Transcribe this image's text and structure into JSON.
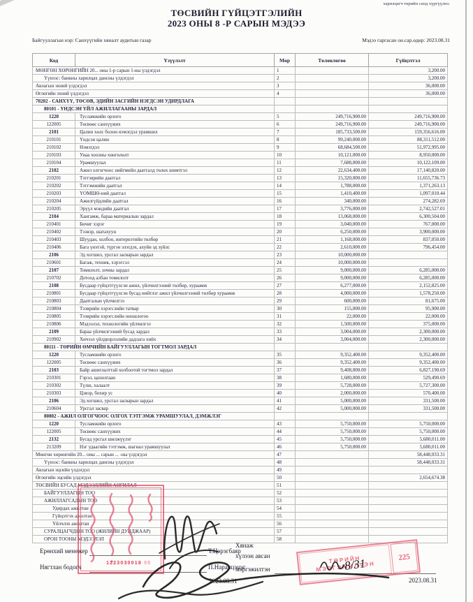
{
  "page": {
    "corner_note": "харилцагч төрийн санд хүргүүлнэ.",
    "title_line1": "ТӨСВИЙН ГҮЙЦЭТГЭЛИЙН",
    "title_line2": "2023 ОНЫ 8 -Р САРЫН МЭДЭЭ",
    "org_label": "Байгууллагын нэр: Санхүүгийн хяналт аудитын газар",
    "date_label": "Мэдээ гаргасан он.сар.өдөр: 2023.08.31"
  },
  "table": {
    "headers": [
      "Код",
      "Үзүүлэлт",
      "Мөр",
      "Төлөвлөгөө",
      "Гүйцэтгэл"
    ],
    "rows": [
      {
        "c": "",
        "t": "МӨНГӨН ХӨРӨНГИЙН 20... оны 1-р сарын 1-ны үлдэгдэл",
        "n": "1",
        "p": "",
        "a": "3,200.00",
        "s": "",
        "i": 0
      },
      {
        "c": "",
        "t": "Үүнээс: банкны харилцах дансны үлдэгдэл",
        "n": "2",
        "p": "",
        "a": "3,200.00",
        "s": "",
        "i": 1
      },
      {
        "c": "",
        "t": "Авлагын эхний үлдэгдэл",
        "n": "3",
        "p": "",
        "a": "36,000.00",
        "s": "",
        "i": 0
      },
      {
        "c": "",
        "t": "Өглөгийн эхний үлдэгдэл",
        "n": "4",
        "p": "",
        "a": "36,000.00",
        "s": "",
        "i": 0
      },
      {
        "c": "",
        "t": "70202 - САНХҮҮ, ТӨСӨВ, ЭДИЙН ЗАСГИЙН НЭГДСЭН УДИРДЛАГА",
        "n": "",
        "p": "",
        "a": "",
        "s": "sec",
        "i": 0
      },
      {
        "c": "",
        "t": "80101 - ҮНДСЭН ҮЙЛ АЖИЛЛАГААНЫ ЗАРДАЛ",
        "n": "",
        "p": "",
        "a": "",
        "s": "sec",
        "i": 1
      },
      {
        "c": "1220",
        "t": "Тусламжийн орлого",
        "n": "5",
        "p": "249,716,900.00",
        "a": "249,716,900.00",
        "s": "b",
        "i": 0
      },
      {
        "c": "122005",
        "t": "Төсвөөс санхүүжих",
        "n": "6",
        "p": "249,716,900.00",
        "a": "249,716,900.00",
        "s": "",
        "i": 0
      },
      {
        "c": "2101",
        "t": "Цалин хөлс болон нэмэгдэл урамшил",
        "n": "7",
        "p": "185,733,500.00",
        "a": "159,356,616.00",
        "s": "b",
        "i": 0
      },
      {
        "c": "210101",
        "t": "Үндсэн цалин",
        "n": "8",
        "p": "99,240,000.00",
        "a": "88,311,512.00",
        "s": "",
        "i": 0
      },
      {
        "c": "210102",
        "t": "Нэмэгдэл",
        "n": "9",
        "p": "68,684,500.00",
        "a": "51,972,995.00",
        "s": "",
        "i": 0
      },
      {
        "c": "210103",
        "t": "Унаа хоолны хөнгөлөлт",
        "n": "10",
        "p": "10,121,000.00",
        "a": "8,950,000.00",
        "s": "",
        "i": 0
      },
      {
        "c": "210104",
        "t": "Урамшуулал",
        "n": "11",
        "p": "7,688,000.00",
        "a": "10,122,109.00",
        "s": "",
        "i": 0
      },
      {
        "c": "2102",
        "t": "Ажил олгогчоос нийгмийн даатгалд төлөх шимтгэл",
        "n": "12",
        "p": "22,634,400.00",
        "a": "17,140,820.00",
        "s": "b",
        "i": 0
      },
      {
        "c": "210201",
        "t": "Тэтгэврийн даатгал",
        "n": "13",
        "p": "15,320,000.00",
        "a": "11,655,736.73",
        "s": "",
        "i": 0
      },
      {
        "c": "210202",
        "t": "Тэтгэмжийн даатгал",
        "n": "14",
        "p": "1,788,000.00",
        "a": "1,371,263.13",
        "s": "",
        "i": 0
      },
      {
        "c": "210203",
        "t": "ҮОМШӨ-ний даатгал",
        "n": "15",
        "p": "1,410,400.00",
        "a": "1,097,010.44",
        "s": "",
        "i": 0
      },
      {
        "c": "210204",
        "t": "Ажилгүйдлийн даатгал",
        "n": "16",
        "p": "340,000.00",
        "a": "274,282.69",
        "s": "",
        "i": 0
      },
      {
        "c": "210205",
        "t": "Эрүүл мэндийн даатгал",
        "n": "17",
        "p": "3,776,000.00",
        "a": "2,742,527.01",
        "s": "",
        "i": 0
      },
      {
        "c": "2104",
        "t": "Хангамж, бараа материалын зардал",
        "n": "18",
        "p": "13,068,000.00",
        "a": "6,300,504.00",
        "s": "b",
        "i": 0
      },
      {
        "c": "210401",
        "t": "Бичиг хэрэг",
        "n": "19",
        "p": "3,040,000.00",
        "a": "767,000.00",
        "s": "",
        "i": 0
      },
      {
        "c": "210402",
        "t": "Тээвэр, шатахуун",
        "n": "20",
        "p": "6,250,000.00",
        "a": "3,900,000.00",
        "s": "",
        "i": 0
      },
      {
        "c": "210403",
        "t": "Шуудан, холбоо, интернэтийн төлбөр",
        "n": "21",
        "p": "1,168,000.00",
        "a": "837,050.00",
        "s": "",
        "i": 0
      },
      {
        "c": "210406",
        "t": "Бага үнэтэй, түргэн элэгдэх, ахуйн эд зүйлс",
        "n": "22",
        "p": "2,610,000.00",
        "a": "796,454.00",
        "s": "",
        "i": 0
      },
      {
        "c": "2106",
        "t": "Эд хогшил, урсгал засварын зардал",
        "n": "23",
        "p": "10,000,000.00",
        "a": "",
        "s": "b",
        "i": 0
      },
      {
        "c": "210601",
        "t": "Багаж, техник, хэрэгсэл",
        "n": "24",
        "p": "10,000,000.00",
        "a": "",
        "s": "",
        "i": 0
      },
      {
        "c": "2107",
        "t": "Томилолт, зочны зардал",
        "n": "25",
        "p": "9,000,000.00",
        "a": "6,285,000.00",
        "s": "b",
        "i": 0
      },
      {
        "c": "210702",
        "t": "Дотоод албан томилолт",
        "n": "26",
        "p": "9,000,000.00",
        "a": "6,285,000.00",
        "s": "",
        "i": 0
      },
      {
        "c": "2108",
        "t": "Бусдаар гүйцэтгүүлсэн ажил, үйлчилгээний төлбөр, хураамж",
        "n": "27",
        "p": "6,277,000.00",
        "a": "2,152,825.00",
        "s": "b",
        "i": 0
      },
      {
        "c": "210801",
        "t": "Бусдаар гүйцэтгүүлсэн бусад нийтлэг ажил үйлчилгээний төлбөр хураамж",
        "n": "28",
        "p": "4,000,000.00",
        "a": "1,578,250.00",
        "s": "",
        "i": 0
      },
      {
        "c": "210803",
        "t": "Даатгалын үйлчилгээ",
        "n": "29",
        "p": "600,000.00",
        "a": "81,675.00",
        "s": "",
        "i": 0
      },
      {
        "c": "210804",
        "t": "Тээврийн хэрэгслийн татвар",
        "n": "30",
        "p": "155,000.00",
        "a": "95,900.00",
        "s": "",
        "i": 0
      },
      {
        "c": "210805",
        "t": "Тээврийн хэрэгслийн оношлогоо",
        "n": "31",
        "p": "22,000.00",
        "a": "22,000.00",
        "s": "",
        "i": 0
      },
      {
        "c": "210806",
        "t": "Мэдээлэл, технологийн үйлчилгээ",
        "n": "32",
        "p": "1,500,000.00",
        "a": "375,000.00",
        "s": "",
        "i": 0
      },
      {
        "c": "2109",
        "t": "Бараа үйлчилгээний бусад зардал",
        "n": "33",
        "p": "3,004,000.00",
        "a": "2,300,000.00",
        "s": "b",
        "i": 0
      },
      {
        "c": "210902",
        "t": "Хичээл үйлдвэрлэлийн дадлага хийх",
        "n": "34",
        "p": "3,004,000.00",
        "a": "2,300,000.00",
        "s": "",
        "i": 0
      },
      {
        "c": "",
        "t": "80111 - ТӨРИЙН ӨМЧИЙН БАЙГУУЛЛАГЫН ТОГТМОЛ ЗАРДАЛ",
        "n": "",
        "p": "",
        "a": "",
        "s": "sec",
        "i": 1
      },
      {
        "c": "1220",
        "t": "Тусламжийн орлого",
        "n": "35",
        "p": "9,352,400.00",
        "a": "9,352,400.00",
        "s": "b",
        "i": 0
      },
      {
        "c": "122005",
        "t": "Төсвөөс санхүүжих",
        "n": "36",
        "p": "9,352,400.00",
        "a": "9,352,400.00",
        "s": "",
        "i": 0
      },
      {
        "c": "2103",
        "t": "Байр ашиглалттай холбоотой тогтмол зардал",
        "n": "37",
        "p": "9,408,000.00",
        "a": "6,827,190.69",
        "s": "b",
        "i": 0
      },
      {
        "c": "210301",
        "t": "Гэрэл, цахилгаан",
        "n": "38",
        "p": "1,680,000.00",
        "a": "529,490.69",
        "s": "",
        "i": 0
      },
      {
        "c": "210302",
        "t": "Түлш, халаалт",
        "n": "39",
        "p": "5,728,000.00",
        "a": "5,727,300.00",
        "s": "",
        "i": 0
      },
      {
        "c": "210303",
        "t": "Цэвэр, бохир ус",
        "n": "40",
        "p": "2,000,000.00",
        "a": "570,400.00",
        "s": "",
        "i": 0
      },
      {
        "c": "2106",
        "t": "Эд хогшил, урсгал засварын зардал",
        "n": "41",
        "p": "5,000,000.00",
        "a": "331,500.00",
        "s": "b",
        "i": 0
      },
      {
        "c": "210604",
        "t": "Урсгал засвар",
        "n": "42",
        "p": "5,000,000.00",
        "a": "331,500.00",
        "s": "",
        "i": 0
      },
      {
        "c": "",
        "t": "80802 - АЖИЛ ОЛГОГЧООС ОЛГОХ ТЭТГЭМЖ УРАМШУУЛАЛ, ДЭМЖЛЭГ",
        "n": "",
        "p": "",
        "a": "",
        "s": "sec",
        "i": 1
      },
      {
        "c": "1220",
        "t": "Тусламжийн орлого",
        "n": "43",
        "p": "5,750,000.00",
        "a": "5,750,000.00",
        "s": "b",
        "i": 0
      },
      {
        "c": "122005",
        "t": "Төсвөөс санхүүжих",
        "n": "44",
        "p": "5,750,000.00",
        "a": "5,750,000.00",
        "s": "",
        "i": 0
      },
      {
        "c": "2132",
        "t": "Бусад урсгал шилжүүлэг",
        "n": "45",
        "p": "5,750,000.00",
        "a": "5,680,011.00",
        "s": "b",
        "i": 0
      },
      {
        "c": "213209",
        "t": "Нэг удаагийн тэтгэмж, шагнал урамшуулал",
        "n": "46",
        "p": "5,750,000.00",
        "a": "5,680,011.00",
        "s": "",
        "i": 0
      },
      {
        "c": "",
        "t": "Мөнгөн хөрөнгийн 20... оны ... сарын ... -ны үлдэгдэл",
        "n": "47",
        "p": "",
        "a": "58,448,033.31",
        "s": "",
        "i": 0
      },
      {
        "c": "",
        "t": "Үүнээс: банкны харилцах дансны үлдэгдэл",
        "n": "48",
        "p": "",
        "a": "58,448,033.31",
        "s": "",
        "i": 1
      },
      {
        "c": "",
        "t": "Авлагын эцсийн үлдэгдэл",
        "n": "49",
        "p": "",
        "a": "",
        "s": "",
        "i": 0
      },
      {
        "c": "",
        "t": "Өглөгийн эцсийн үлдэгдэл",
        "n": "50",
        "p": "",
        "a": "2,654,674.38",
        "s": "",
        "i": 0
      },
      {
        "c": "",
        "t": "ТӨСВИЙН БУСАД МЭДЭЭЛЛИЙН АНГИЛАЛ",
        "n": "51",
        "p": "",
        "a": "",
        "s": "",
        "i": 0
      },
      {
        "c": "",
        "t": "БАЙГУУЛЛАГЫН ТОО",
        "n": "52",
        "p": "",
        "a": "",
        "s": "",
        "i": 1
      },
      {
        "c": "",
        "t": "АЖИЛЛАГСАДЫН ТОО",
        "n": "53",
        "p": "",
        "a": "",
        "s": "",
        "i": 1
      },
      {
        "c": "",
        "t": "Удирдах ажилтан",
        "n": "54",
        "p": "",
        "a": "",
        "s": "",
        "i": 2
      },
      {
        "c": "",
        "t": "Гүйцэтгэх ажилтан",
        "n": "55",
        "p": "",
        "a": "",
        "s": "",
        "i": 2
      },
      {
        "c": "",
        "t": "Үйлчлэх ажилтан",
        "n": "56",
        "p": "",
        "a": "",
        "s": "",
        "i": 2
      },
      {
        "c": "",
        "t": "СУРАЛЦАГЧДЫН ТОО (ЖИЛИЙН ДУНДЖААР)",
        "n": "57",
        "p": "",
        "a": "",
        "s": "",
        "i": 1
      },
      {
        "c": "",
        "t": "ОРОН ТООНЫ МЭДЭЭЛЭЛ",
        "n": "58",
        "p": "",
        "a": "",
        "s": "",
        "i": 1
      }
    ]
  },
  "footer": {
    "gm_label": "Ерөнхий менежер",
    "gm_name": "Т.Цэрэгбаяр",
    "acc_label": "Нягтлан бодогч",
    "acc_name": "П.Наранцэцэг",
    "left_date": "2023.08.31",
    "reviewer_line1": "Хянаж",
    "reviewer_line2": "хүлээн авсан",
    "reviewer_line3": "мэргэжилтэн",
    "right_date": "2023.08.31",
    "stamp_id": "1223030018",
    "stamp_id_extra": "05",
    "stamp2_line1": "ТӨРИЙН",
    "stamp2_line2": "МЭРГЭЖИЛТЭН",
    "stamp2_number": "225",
    "handwritten_date": "8/31"
  },
  "colors": {
    "stamp_red": "#e24b64",
    "ink_black": "#1a1a1a",
    "text": "#1d1d2e"
  }
}
